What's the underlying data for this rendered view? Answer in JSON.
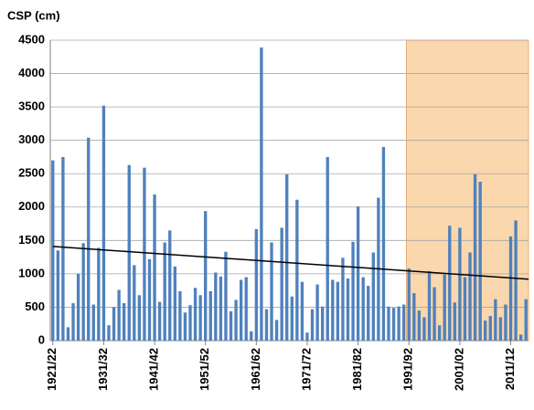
{
  "chart_data": {
    "type": "bar",
    "ylabel": "CSP (cm)",
    "categories": [
      "1921/22",
      null,
      null,
      null,
      null,
      null,
      null,
      null,
      null,
      null,
      "1931/32",
      null,
      null,
      null,
      null,
      null,
      null,
      null,
      null,
      null,
      "1941/42",
      null,
      null,
      null,
      null,
      null,
      null,
      null,
      null,
      null,
      "1951/52",
      null,
      null,
      null,
      null,
      null,
      null,
      null,
      null,
      null,
      "1961/62",
      null,
      null,
      null,
      null,
      null,
      null,
      null,
      null,
      null,
      "1971/72",
      null,
      null,
      null,
      null,
      null,
      null,
      null,
      null,
      null,
      "1981/82",
      null,
      null,
      null,
      null,
      null,
      null,
      null,
      null,
      null,
      "1991/92",
      null,
      null,
      null,
      null,
      null,
      null,
      null,
      null,
      null,
      "2001/02",
      null,
      null,
      null,
      null,
      null,
      null,
      null,
      null,
      null,
      "2011/12",
      null,
      null,
      null
    ],
    "values": [
      2700,
      1350,
      2750,
      200,
      560,
      1000,
      1460,
      3040,
      540,
      1390,
      3520,
      230,
      500,
      760,
      560,
      2630,
      1130,
      680,
      2590,
      1220,
      2190,
      580,
      1470,
      1650,
      1110,
      740,
      420,
      530,
      790,
      680,
      1940,
      740,
      1020,
      960,
      1330,
      440,
      610,
      910,
      950,
      140,
      1670,
      4390,
      470,
      1470,
      310,
      1690,
      2490,
      660,
      2110,
      880,
      120,
      470,
      840,
      510,
      2750,
      910,
      880,
      1240,
      930,
      1480,
      2010,
      950,
      820,
      1320,
      2140,
      2900,
      510,
      490,
      510,
      540,
      1080,
      710,
      450,
      350,
      1040,
      800,
      230,
      990,
      1720,
      570,
      1690,
      950,
      1320,
      2490,
      2380,
      300,
      370,
      620,
      350,
      540,
      1560,
      1800,
      90,
      620
    ],
    "color": "#4f81bd",
    "ylim": [
      0,
      4500
    ],
    "yticks": [
      0,
      500,
      1000,
      1500,
      2000,
      2500,
      3000,
      3500,
      4000,
      4500
    ],
    "grid": true,
    "trend": {
      "values": [
        1410,
        920
      ],
      "color": "#000000"
    },
    "highlight": {
      "from": "1991/92",
      "color": "#fad7ac"
    }
  }
}
